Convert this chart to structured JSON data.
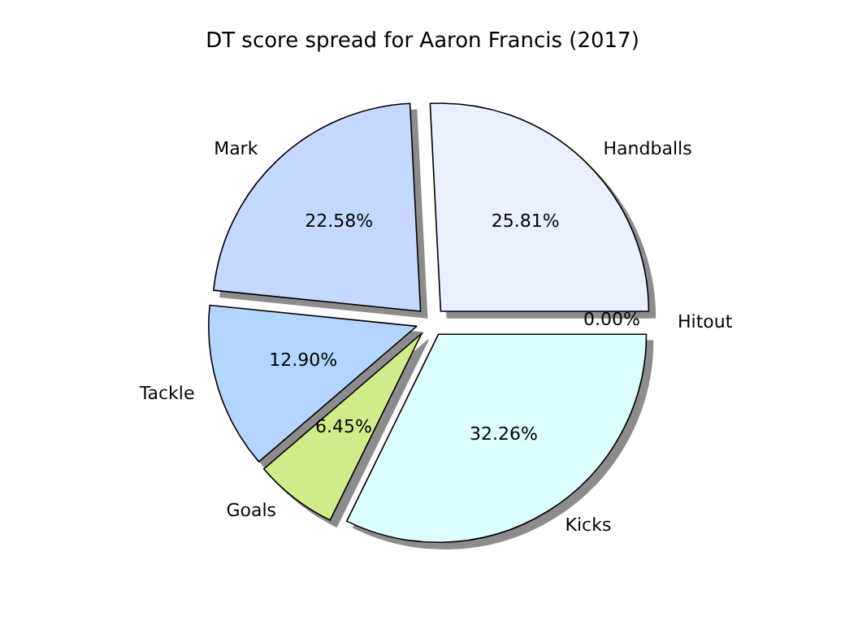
{
  "chart_data": {
    "type": "pie",
    "title": "DT score spread for Aaron Francis (2017)",
    "categories": [
      "Handballs",
      "Mark",
      "Tackle",
      "Goals",
      "Kicks",
      "Hitout"
    ],
    "values": [
      25.81,
      22.58,
      12.9,
      6.45,
      32.26,
      0
    ],
    "value_labels": [
      "25.81%",
      "22.58%",
      "12.90%",
      "6.45%",
      "32.26%",
      "0.00%"
    ],
    "colors": [
      "#eaf0ff",
      "#c5d8ff",
      "#b3d5ff",
      "#d0ec8a",
      "#dcfeff",
      "#f4f4f4"
    ],
    "legend": false
  }
}
